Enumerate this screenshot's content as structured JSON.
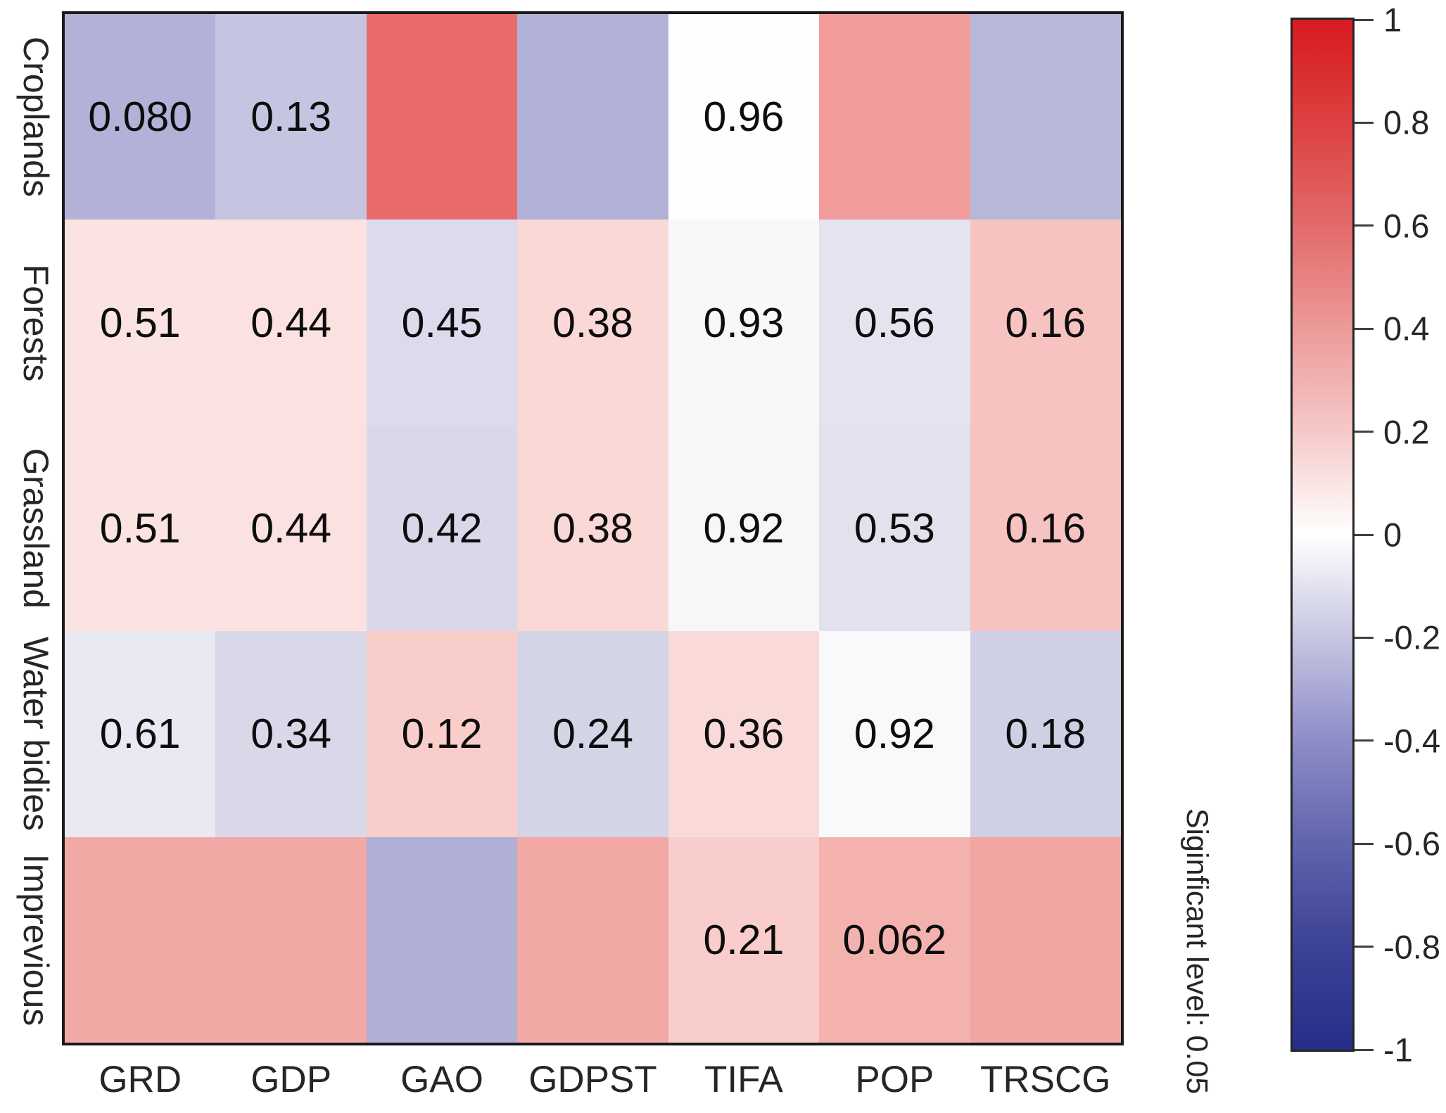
{
  "figure": {
    "background": "#ffffff",
    "frame_color": "#1a1a1a",
    "annotation_vertical": "Siginficant level: 0.05"
  },
  "chart_data": {
    "type": "heatmap",
    "columns": [
      "GRD",
      "GDP",
      "GAO",
      "GDPST",
      "TIFA",
      "POP",
      "TRSCG"
    ],
    "rows": [
      "Croplands",
      "Forests",
      "Grassland",
      "Water bidies",
      "Imprevious"
    ],
    "cells": [
      [
        {
          "label": "0.080",
          "color": "#b2b2d8"
        },
        {
          "label": "0.13",
          "color": "#c5c5e2"
        },
        {
          "label": "",
          "color": "#e96a6a"
        },
        {
          "label": "",
          "color": "#b1b1d7"
        },
        {
          "label": "0.96",
          "color": "#fefeff"
        },
        {
          "label": "",
          "color": "#f29b9b"
        },
        {
          "label": "",
          "color": "#b7b7da"
        }
      ],
      [
        {
          "label": "0.51",
          "color": "#fbe3e1"
        },
        {
          "label": "0.44",
          "color": "#fbe2e0"
        },
        {
          "label": "0.45",
          "color": "#dbdbed"
        },
        {
          "label": "0.38",
          "color": "#f9d8d6"
        },
        {
          "label": "0.93",
          "color": "#f8f7f9"
        },
        {
          "label": "0.56",
          "color": "#e4e3f0"
        },
        {
          "label": "0.16",
          "color": "#f6c3c1"
        }
      ],
      [
        {
          "label": "0.51",
          "color": "#fbe3e1"
        },
        {
          "label": "0.44",
          "color": "#fbe2e0"
        },
        {
          "label": "0.42",
          "color": "#d8d8ea"
        },
        {
          "label": "0.38",
          "color": "#f9d8d6"
        },
        {
          "label": "0.92",
          "color": "#f8f6f8"
        },
        {
          "label": "0.53",
          "color": "#e2e1ee"
        },
        {
          "label": "0.16",
          "color": "#f6c3c1"
        }
      ],
      [
        {
          "label": "0.61",
          "color": "#e9e9f3"
        },
        {
          "label": "0.34",
          "color": "#d8d8e9"
        },
        {
          "label": "0.12",
          "color": "#f8cdca"
        },
        {
          "label": "0.24",
          "color": "#d4d4e7"
        },
        {
          "label": "0.36",
          "color": "#fadad8"
        },
        {
          "label": "0.92",
          "color": "#f9f8fa"
        },
        {
          "label": "0.18",
          "color": "#d0d0e4"
        }
      ],
      [
        {
          "label": "",
          "color": "#f2a9a6"
        },
        {
          "label": "",
          "color": "#f2a9a6"
        },
        {
          "label": "",
          "color": "#afafd6"
        },
        {
          "label": "",
          "color": "#f2a8a5"
        },
        {
          "label": "0.21",
          "color": "#f8cdcb"
        },
        {
          "label": "0.062",
          "color": "#f4b2af"
        },
        {
          "label": "",
          "color": "#f2a6a3"
        }
      ]
    ],
    "colorbar": {
      "min": -1,
      "max": 1,
      "tick_labels": [
        "1",
        "0.8",
        "0.6",
        "0.4",
        "0.2",
        "0",
        "-0.2",
        "-0.4",
        "-0.6",
        "-0.8",
        "-1"
      ],
      "gradient_stops": [
        {
          "pos": 0.0,
          "color": "#d81b21"
        },
        {
          "pos": 0.1,
          "color": "#dc4040"
        },
        {
          "pos": 0.2,
          "color": "#e36a6a"
        },
        {
          "pos": 0.3,
          "color": "#ec9a99"
        },
        {
          "pos": 0.4,
          "color": "#f5c9c8"
        },
        {
          "pos": 0.5,
          "color": "#ffffff"
        },
        {
          "pos": 0.6,
          "color": "#c6c5e2"
        },
        {
          "pos": 0.7,
          "color": "#8e8dc7"
        },
        {
          "pos": 0.8,
          "color": "#6064ad"
        },
        {
          "pos": 0.9,
          "color": "#3c4295"
        },
        {
          "pos": 1.0,
          "color": "#252e88"
        }
      ]
    },
    "legend_note": "Siginficant level: 0.05"
  }
}
